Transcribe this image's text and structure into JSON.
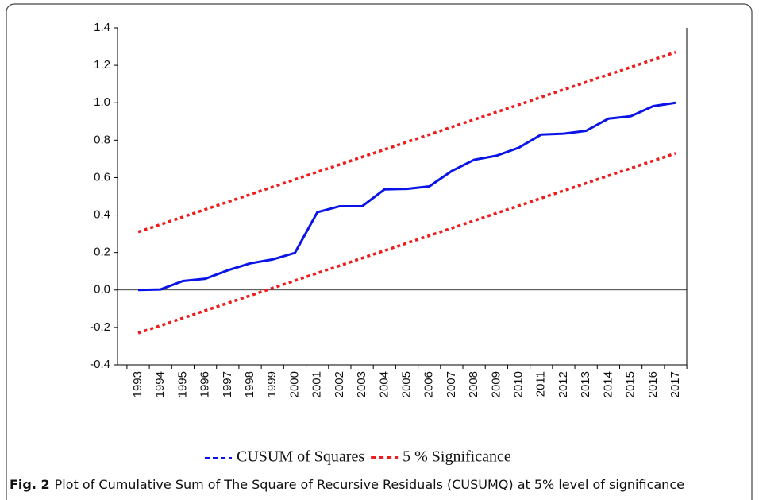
{
  "chart_data": {
    "type": "line",
    "categories": [
      "1993",
      "1994",
      "1995",
      "1996",
      "1997",
      "1998",
      "1999",
      "2000",
      "2001",
      "2002",
      "2003",
      "2004",
      "2005",
      "2006",
      "2007",
      "2008",
      "2009",
      "2010",
      "2011",
      "2012",
      "2013",
      "2014",
      "2015",
      "2016",
      "2017"
    ],
    "series": [
      {
        "name": "CUSUM of Squares",
        "color": "#0a14e6",
        "values": [
          0.0,
          0.003,
          0.048,
          0.06,
          0.105,
          0.142,
          0.163,
          0.198,
          0.415,
          0.447,
          0.447,
          0.537,
          0.54,
          0.553,
          0.635,
          0.695,
          0.717,
          0.76,
          0.83,
          0.835,
          0.85,
          0.915,
          0.928,
          0.982,
          1.0
        ]
      },
      {
        "name": "5 % Significance",
        "color": "#ee1c1c",
        "values": [
          0.31,
          0.35,
          0.39,
          0.43,
          0.47,
          0.51,
          0.55,
          0.59,
          0.63,
          0.67,
          0.71,
          0.75,
          0.79,
          0.83,
          0.87,
          0.91,
          0.95,
          0.99,
          1.03,
          1.07,
          1.11,
          1.15,
          1.19,
          1.23,
          1.27
        ],
        "lower": [
          -0.23,
          -0.19,
          -0.15,
          -0.11,
          -0.07,
          -0.03,
          0.01,
          0.05,
          0.09,
          0.13,
          0.17,
          0.21,
          0.25,
          0.29,
          0.33,
          0.37,
          0.41,
          0.45,
          0.49,
          0.53,
          0.57,
          0.61,
          0.65,
          0.69,
          0.73
        ]
      }
    ],
    "ylim": [
      -0.4,
      1.4
    ],
    "yticks": [
      -0.4,
      -0.2,
      {
        "value": 0,
        "label": "0.0"
      },
      0.2,
      0.4,
      0.6,
      0.8,
      {
        "value": 1,
        "label": "1.0"
      },
      1.2,
      1.4
    ],
    "caption_label": "Fig. 2",
    "caption": "Plot of Cumulative Sum of The Square of Recursive Residuals (CUSUMQ) at 5% level of significance"
  }
}
